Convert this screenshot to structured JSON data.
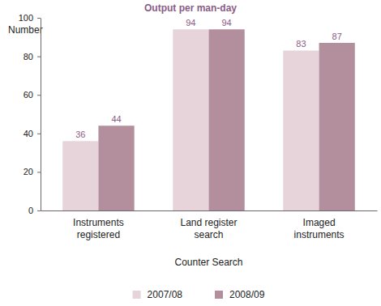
{
  "chart_data": {
    "type": "bar",
    "title": "Output per man-day",
    "y_label": "Number",
    "x_label": "Counter Search",
    "categories": [
      "Instruments registered",
      "Land register search",
      "Imaged instruments"
    ],
    "series": [
      {
        "name": "2007/08",
        "color": "#e6d4da",
        "values": [
          36,
          94,
          83
        ]
      },
      {
        "name": "2008/09",
        "color": "#b38e9c",
        "values": [
          44,
          94,
          87
        ]
      }
    ],
    "ylim": [
      0,
      100
    ],
    "yticks": [
      0,
      20,
      40,
      60,
      80,
      100
    ],
    "grid": false,
    "legend": "bottom",
    "data_labels": true
  }
}
